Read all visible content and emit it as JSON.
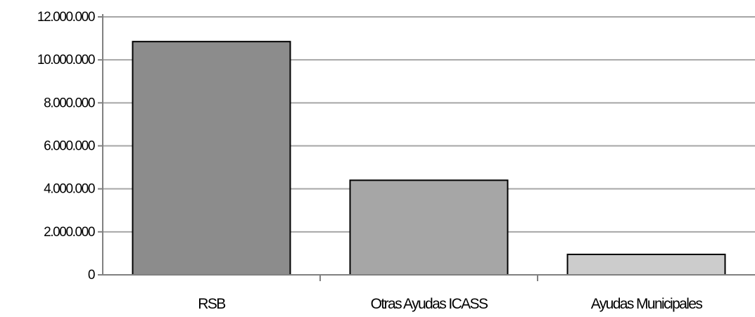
{
  "chart_data": {
    "type": "bar",
    "title": "",
    "xlabel": "",
    "ylabel": "",
    "categories": [
      "RSB",
      "Otras Ayudas ICASS",
      "Ayudas Municipales"
    ],
    "values": [
      10850000,
      4400000,
      950000
    ],
    "ylim": [
      0,
      12000000
    ],
    "yticks": [
      0,
      2000000,
      4000000,
      6000000,
      8000000,
      10000000,
      12000000
    ],
    "ytick_labels": [
      "0",
      "2.000.000",
      "4.000.000",
      "6.000.000",
      "8.000.000",
      "10.000.000",
      "12.000.000"
    ],
    "grid": true,
    "legend": "none",
    "colors": {
      "bars": [
        "#8c8c8c",
        "#a6a6a6",
        "#cccccc"
      ],
      "bar_stroke": "#000000",
      "grid": "#a6a6a6",
      "axis": "#808080"
    }
  }
}
